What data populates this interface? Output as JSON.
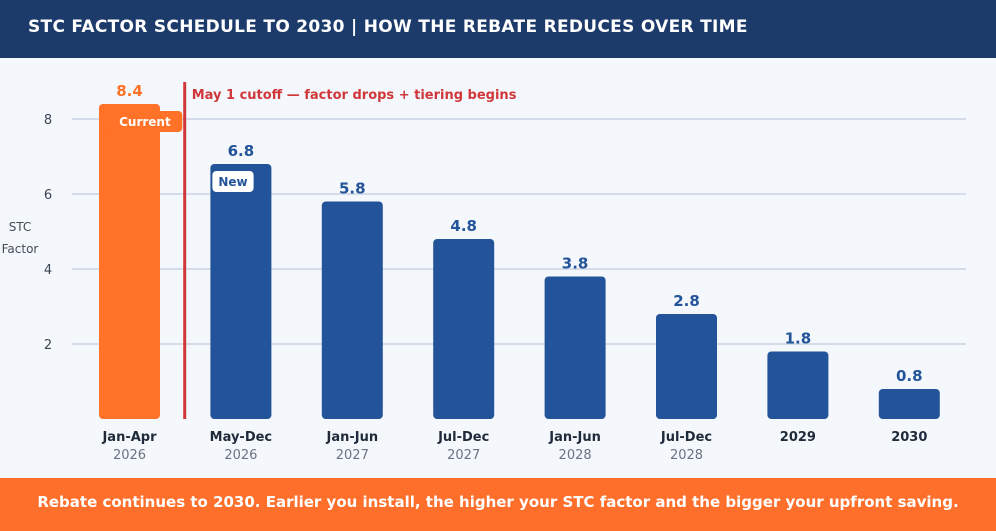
{
  "header": {
    "title": "STC FACTOR SCHEDULE TO 2030  |  HOW THE REBATE REDUCES OVER TIME"
  },
  "footer": {
    "message": "Rebate continues to 2030. Earlier you install, the higher your STC factor and the bigger your upfront saving."
  },
  "colors": {
    "current": "#ff7227",
    "future": "#235399",
    "cutoff": "#d0373a",
    "grid": "#c8d3e2",
    "header_bg": "#1c3b6a",
    "footer_bg": "#ff6f2c"
  },
  "chart_data": {
    "type": "bar",
    "title": "STC FACTOR SCHEDULE TO 2030  |  HOW THE REBATE REDUCES OVER TIME",
    "ylabel_lines": [
      "STC",
      "Factor"
    ],
    "ylim": [
      0,
      8.4
    ],
    "yticks": [
      2,
      4,
      6,
      8
    ],
    "grid": true,
    "categories": [
      {
        "label": "Jan-Apr",
        "year": "2026"
      },
      {
        "label": "May-Dec",
        "year": "2026"
      },
      {
        "label": "Jan-Jun",
        "year": "2027"
      },
      {
        "label": "Jul-Dec",
        "year": "2027"
      },
      {
        "label": "Jan-Jun",
        "year": "2028"
      },
      {
        "label": "Jul-Dec",
        "year": "2028"
      },
      {
        "label": "2029",
        "year": ""
      },
      {
        "label": "2030",
        "year": ""
      }
    ],
    "values": [
      8.4,
      6.8,
      5.8,
      4.8,
      3.8,
      2.8,
      1.8,
      0.8
    ],
    "value_labels": [
      "8.4",
      "6.8",
      "5.8",
      "4.8",
      "3.8",
      "2.8",
      "1.8",
      "0.8"
    ],
    "badges": [
      {
        "index": 0,
        "text": "Current"
      },
      {
        "index": 1,
        "text": "New"
      }
    ],
    "highlight_index": 0,
    "annotation": {
      "text": "May 1 cutoff — factor drops + tiering begins",
      "after_index": 0
    }
  }
}
